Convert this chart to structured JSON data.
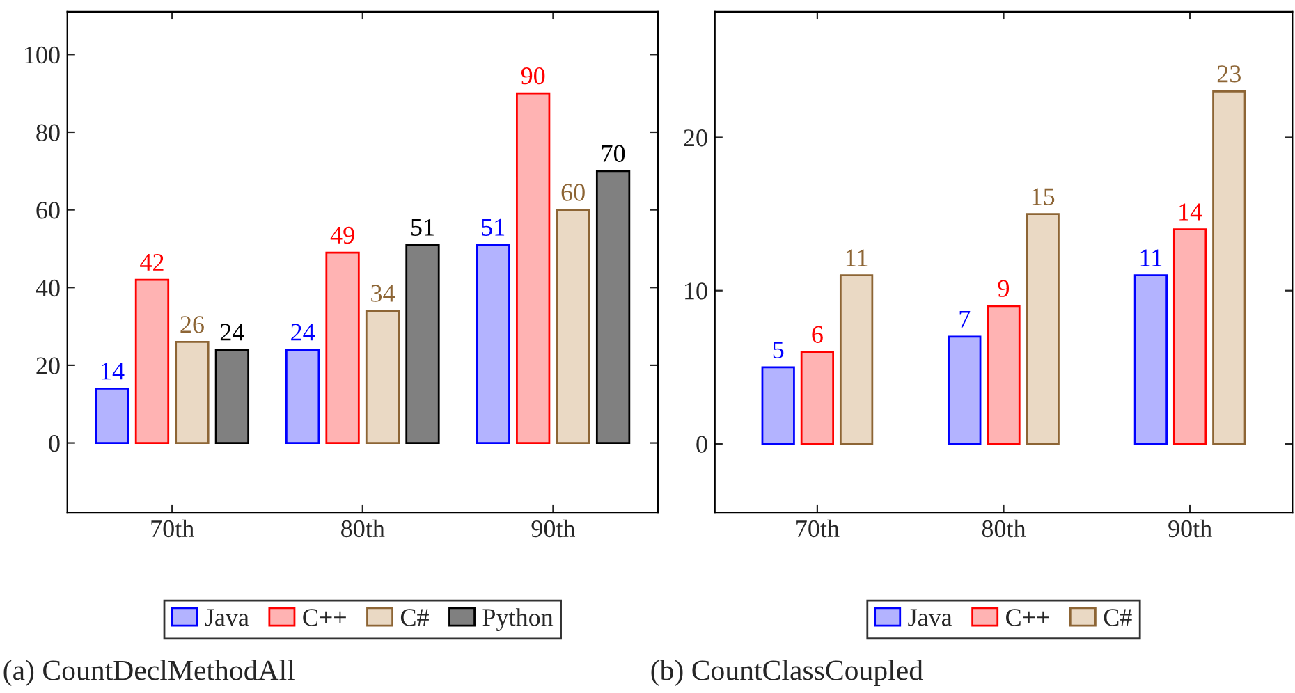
{
  "chart_data": [
    {
      "type": "bar",
      "categories": [
        "70th",
        "80th",
        "90th"
      ],
      "ylim": [
        -18,
        111
      ],
      "yticks": [
        0,
        20,
        40,
        60,
        80,
        100
      ],
      "data_labels": true,
      "legend": "bottom",
      "grid": false,
      "series": [
        {
          "name": "Java",
          "color": "#b3b3ff",
          "values": [
            14,
            24,
            51
          ]
        },
        {
          "name": "C++",
          "color": "#ffb3b3",
          "values": [
            42,
            49,
            90
          ]
        },
        {
          "name": "C#",
          "color": "#ead9c4",
          "values": [
            26,
            34,
            60
          ]
        },
        {
          "name": "Python",
          "color": "#808080",
          "values": [
            24,
            51,
            70
          ]
        }
      ],
      "annotations": [
        "(a) CountDeclMethodAll"
      ]
    },
    {
      "type": "bar",
      "categories": [
        "70th",
        "80th",
        "90th"
      ],
      "ylim": [
        -4.5,
        28.2
      ],
      "yticks": [
        0,
        10,
        20
      ],
      "data_labels": true,
      "legend": "bottom",
      "grid": false,
      "series": [
        {
          "name": "Java",
          "color": "#b3b3ff",
          "values": [
            5,
            7,
            11
          ]
        },
        {
          "name": "C++",
          "color": "#ffb3b3",
          "values": [
            6,
            9,
            14
          ]
        },
        {
          "name": "C#",
          "color": "#ead9c4",
          "values": [
            11,
            15,
            23
          ]
        }
      ],
      "annotations": [
        "(b) CountClassCoupled"
      ]
    }
  ]
}
